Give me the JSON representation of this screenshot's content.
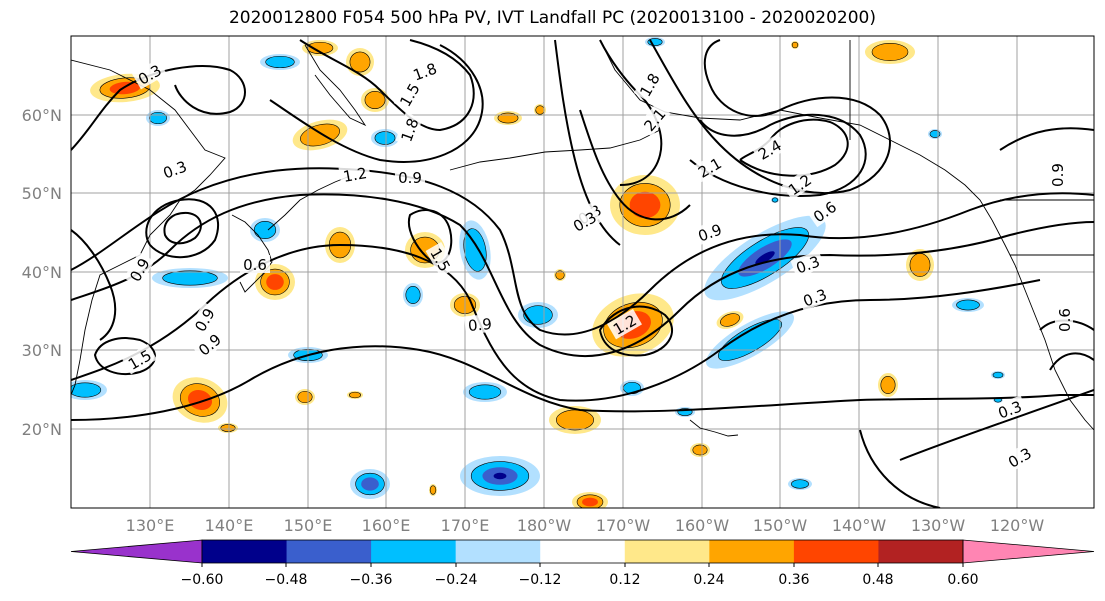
{
  "title": "2020012800 F054 500 hPa PV, IVT Landfall PC (2020013100 - 2020020200)",
  "map": {
    "lat_labels": [
      "60°N",
      "50°N",
      "40°N",
      "30°N",
      "20°N"
    ],
    "lon_labels": [
      "130°E",
      "140°E",
      "150°E",
      "160°E",
      "170°E",
      "180°W",
      "170°W",
      "160°W",
      "150°W",
      "140°W",
      "130°W",
      "120°W"
    ],
    "contour_labels": [
      "0.3",
      "1.8",
      "1.5",
      "1.8",
      "0.3",
      "1.2",
      "0.9",
      "0.9",
      "1.5",
      "0.9",
      "0.9",
      "0.6",
      "0.3",
      "1.2",
      "1.5",
      "2.1",
      "1.8",
      "2.1",
      "2.4",
      "1.2",
      "0.6",
      "0.9",
      "0.3",
      "0.3",
      "0.9",
      "0.6",
      "0.3",
      "0.3",
      "0.9",
      "0.3"
    ]
  },
  "colorbar": {
    "tick_labels": [
      "−0.60",
      "−0.48",
      "−0.36",
      "−0.24",
      "−0.12",
      "0.12",
      "0.24",
      "0.36",
      "0.48",
      "0.60"
    ],
    "colors": [
      "#9932CC",
      "#00008B",
      "#3A5FCD",
      "#00BFFF",
      "#B2E0FF",
      "#FFFFFF",
      "#FFE88A",
      "#FFA500",
      "#FF4500",
      "#B22222",
      "#FF85B3"
    ]
  },
  "colors": {
    "contour": "#000000",
    "grid": "#a0a0a0",
    "coast": "#000000",
    "tick_label": "#808080"
  }
}
